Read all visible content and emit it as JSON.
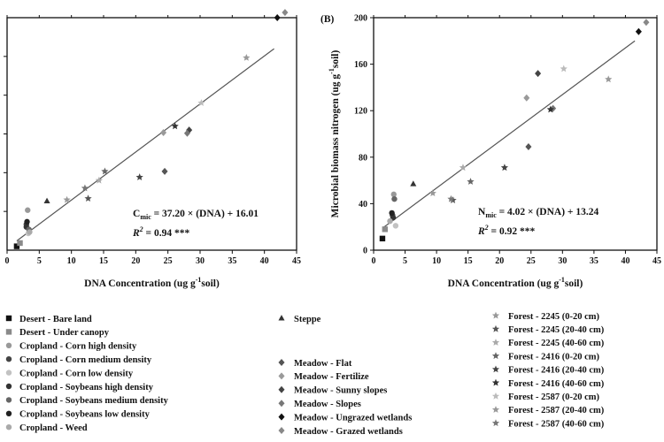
{
  "colors": {
    "axis": "#111111",
    "line": "#555555",
    "text": "#111111"
  },
  "chart_data": [
    {
      "type": "scatter",
      "panel_label": "",
      "title": "",
      "xlabel": "DNA Concentration (ug g",
      "xlabel_sup": "-1",
      "xlabel_tail": "soil)",
      "ylabel": "",
      "xlim": [
        0,
        45
      ],
      "ylim": [
        0,
        1800
      ],
      "xticks": [
        0,
        5,
        10,
        15,
        20,
        25,
        30,
        35,
        40,
        45
      ],
      "yticks": [],
      "regression": {
        "slope": 37.2,
        "intercept": 16.01
      },
      "equation": {
        "prefix": "C",
        "sub": "mic",
        "rhs": " = 37.20 × (DNA)  + 16.01",
        "r2_symbol": "R",
        "r2_sup": "2",
        "r2_rhs": " = 0.94 ***"
      },
      "points": [
        {
          "x": 1.5,
          "y": 30,
          "series": "desert-bare-land"
        },
        {
          "x": 2.0,
          "y": 55,
          "series": "desert-under-canopy"
        },
        {
          "x": 3.2,
          "y": 310,
          "series": "cropland-corn-high"
        },
        {
          "x": 3.0,
          "y": 200,
          "series": "cropland-corn-medium"
        },
        {
          "x": 3.3,
          "y": 130,
          "series": "cropland-corn-low"
        },
        {
          "x": 3.0,
          "y": 180,
          "series": "cropland-soybeans-high"
        },
        {
          "x": 3.4,
          "y": 160,
          "series": "cropland-soybeans-medium"
        },
        {
          "x": 3.1,
          "y": 220,
          "series": "cropland-soybeans-low"
        },
        {
          "x": 3.5,
          "y": 140,
          "series": "cropland-weed"
        },
        {
          "x": 6.2,
          "y": 380,
          "series": "steppe"
        },
        {
          "x": 24.5,
          "y": 610,
          "series": "meadow-flat"
        },
        {
          "x": 24.3,
          "y": 910,
          "series": "meadow-fertilize"
        },
        {
          "x": 28.3,
          "y": 930,
          "series": "meadow-sunny-slopes"
        },
        {
          "x": 28.0,
          "y": 905,
          "series": "meadow-slopes"
        },
        {
          "x": 42.0,
          "y": 1800,
          "series": "meadow-ungrazed-wetlands"
        },
        {
          "x": 43.2,
          "y": 1840,
          "series": "meadow-grazed-wetlands"
        },
        {
          "x": 9.3,
          "y": 390,
          "series": "forest-2245-0-20"
        },
        {
          "x": 12.6,
          "y": 400,
          "series": "forest-2245-20-40"
        },
        {
          "x": 14.3,
          "y": 540,
          "series": "forest-2245-40-60"
        },
        {
          "x": 15.2,
          "y": 610,
          "series": "forest-2416-0-20"
        },
        {
          "x": 20.6,
          "y": 565,
          "series": "forest-2416-20-40"
        },
        {
          "x": 26.1,
          "y": 960,
          "series": "forest-2416-40-60"
        },
        {
          "x": 30.2,
          "y": 1140,
          "series": "forest-2587-0-20"
        },
        {
          "x": 37.2,
          "y": 1490,
          "series": "forest-2587-20-40"
        },
        {
          "x": 12.1,
          "y": 480,
          "series": "forest-2587-40-60"
        }
      ]
    },
    {
      "type": "scatter",
      "panel_label": "(B)",
      "title": "",
      "xlabel": "DNA Concentration (ug g",
      "xlabel_sup": "-1",
      "xlabel_tail": "soil)",
      "ylabel": "Microbial biomass nitrogen (ug g",
      "ylabel_sup": "-1",
      "ylabel_tail": "soil)",
      "xlim": [
        0,
        45
      ],
      "ylim": [
        0,
        200
      ],
      "xticks": [
        0,
        5,
        10,
        15,
        20,
        25,
        30,
        35,
        40,
        45
      ],
      "yticks": [
        0,
        40,
        80,
        120,
        160,
        200
      ],
      "regression": {
        "slope": 4.02,
        "intercept": 13.24
      },
      "equation": {
        "prefix": "N",
        "sub": "mic",
        "rhs": " = 4.02 × (DNA)  + 13.24",
        "r2_symbol": "R",
        "r2_sup": "2",
        "r2_rhs": " = 0.92 ***"
      },
      "points": [
        {
          "x": 1.4,
          "y": 10,
          "series": "desert-bare-land"
        },
        {
          "x": 1.8,
          "y": 18,
          "series": "desert-under-canopy"
        },
        {
          "x": 3.2,
          "y": 48,
          "series": "cropland-corn-high"
        },
        {
          "x": 3.0,
          "y": 30,
          "series": "cropland-corn-medium"
        },
        {
          "x": 3.5,
          "y": 21,
          "series": "cropland-corn-low"
        },
        {
          "x": 3.1,
          "y": 28,
          "series": "cropland-soybeans-high"
        },
        {
          "x": 3.3,
          "y": 44,
          "series": "cropland-soybeans-medium"
        },
        {
          "x": 2.9,
          "y": 32,
          "series": "cropland-soybeans-low"
        },
        {
          "x": 2.6,
          "y": 25,
          "series": "cropland-weed"
        },
        {
          "x": 6.3,
          "y": 57,
          "series": "steppe"
        },
        {
          "x": 24.6,
          "y": 89,
          "series": "meadow-flat"
        },
        {
          "x": 24.3,
          "y": 131,
          "series": "meadow-fertilize"
        },
        {
          "x": 26.1,
          "y": 152,
          "series": "meadow-sunny-slopes"
        },
        {
          "x": 28.5,
          "y": 122,
          "series": "meadow-slopes"
        },
        {
          "x": 42.1,
          "y": 188,
          "series": "meadow-ungrazed-wetlands"
        },
        {
          "x": 43.3,
          "y": 196,
          "series": "meadow-grazed-wetlands"
        },
        {
          "x": 9.4,
          "y": 49,
          "series": "forest-2245-0-20"
        },
        {
          "x": 12.6,
          "y": 43,
          "series": "forest-2245-20-40"
        },
        {
          "x": 14.2,
          "y": 71,
          "series": "forest-2245-40-60"
        },
        {
          "x": 15.4,
          "y": 59,
          "series": "forest-2416-0-20"
        },
        {
          "x": 20.8,
          "y": 71,
          "series": "forest-2416-20-40"
        },
        {
          "x": 28.1,
          "y": 121,
          "series": "forest-2416-40-60"
        },
        {
          "x": 30.2,
          "y": 156,
          "series": "forest-2587-0-20"
        },
        {
          "x": 37.3,
          "y": 147,
          "series": "forest-2587-20-40"
        },
        {
          "x": 12.3,
          "y": 44,
          "series": "forest-2587-40-60"
        }
      ]
    }
  ],
  "legend": [
    {
      "key": "desert-bare-land",
      "label": "Desert - Bare land",
      "marker": "square",
      "color": "#111111"
    },
    {
      "key": "desert-under-canopy",
      "label": "Desert - Under canopy",
      "marker": "square",
      "color": "#8a8a8a"
    },
    {
      "key": "cropland-corn-high",
      "label": "Cropland - Corn high density",
      "marker": "circle",
      "color": "#999999"
    },
    {
      "key": "cropland-corn-medium",
      "label": "Cropland - Corn medium density",
      "marker": "circle",
      "color": "#444444"
    },
    {
      "key": "cropland-corn-low",
      "label": "Cropland - Corn low density",
      "marker": "circle",
      "color": "#c2c2c2"
    },
    {
      "key": "cropland-soybeans-high",
      "label": "Cropland - Soybeans high density",
      "marker": "circle",
      "color": "#333333"
    },
    {
      "key": "cropland-soybeans-medium",
      "label": "Cropland - Soybeans medium density",
      "marker": "circle",
      "color": "#666666"
    },
    {
      "key": "cropland-soybeans-low",
      "label": "Cropland - Soybeans low density",
      "marker": "circle",
      "color": "#222222"
    },
    {
      "key": "cropland-weed",
      "label": "Cropland - Weed",
      "marker": "circle",
      "color": "#aaaaaa"
    },
    {
      "key": "steppe",
      "label": "Steppe",
      "marker": "triangle",
      "color": "#333333"
    },
    {
      "key": "meadow-flat",
      "label": "Meadow - Flat",
      "marker": "diamond",
      "color": "#555555"
    },
    {
      "key": "meadow-fertilize",
      "label": "Meadow - Fertilize",
      "marker": "diamond",
      "color": "#9a9a9a"
    },
    {
      "key": "meadow-sunny-slopes",
      "label": "Meadow - Sunny slopes",
      "marker": "diamond",
      "color": "#444444"
    },
    {
      "key": "meadow-slopes",
      "label": "Meadow - Slopes",
      "marker": "diamond",
      "color": "#777777"
    },
    {
      "key": "meadow-ungrazed-wetlands",
      "label": "Meadow - Ungrazed wetlands",
      "marker": "diamond",
      "color": "#111111"
    },
    {
      "key": "meadow-grazed-wetlands",
      "label": "Meadow - Grazed wetlands",
      "marker": "diamond",
      "color": "#888888"
    },
    {
      "key": "forest-2245-0-20",
      "label": "Forest - 2245 (0-20 cm)",
      "marker": "star",
      "color": "#999999"
    },
    {
      "key": "forest-2245-20-40",
      "label": "Forest - 2245 (20-40 cm)",
      "marker": "star",
      "color": "#555555"
    },
    {
      "key": "forest-2245-40-60",
      "label": "Forest - 2245 (40-60 cm)",
      "marker": "star",
      "color": "#aaaaaa"
    },
    {
      "key": "forest-2416-0-20",
      "label": "Forest - 2416 (0-20 cm)",
      "marker": "star",
      "color": "#666666"
    },
    {
      "key": "forest-2416-20-40",
      "label": "Forest - 2416 (20-40 cm)",
      "marker": "star",
      "color": "#444444"
    },
    {
      "key": "forest-2416-40-60",
      "label": "Forest - 2416 (40-60 cm)",
      "marker": "star",
      "color": "#333333"
    },
    {
      "key": "forest-2587-0-20",
      "label": "Forest - 2587 (0-20 cm)",
      "marker": "star",
      "color": "#bbbbbb"
    },
    {
      "key": "forest-2587-20-40",
      "label": "Forest - 2587 (20-40 cm)",
      "marker": "star",
      "color": "#999999"
    },
    {
      "key": "forest-2587-40-60",
      "label": "Forest - 2587 (40-60 cm)",
      "marker": "star",
      "color": "#777777"
    }
  ]
}
